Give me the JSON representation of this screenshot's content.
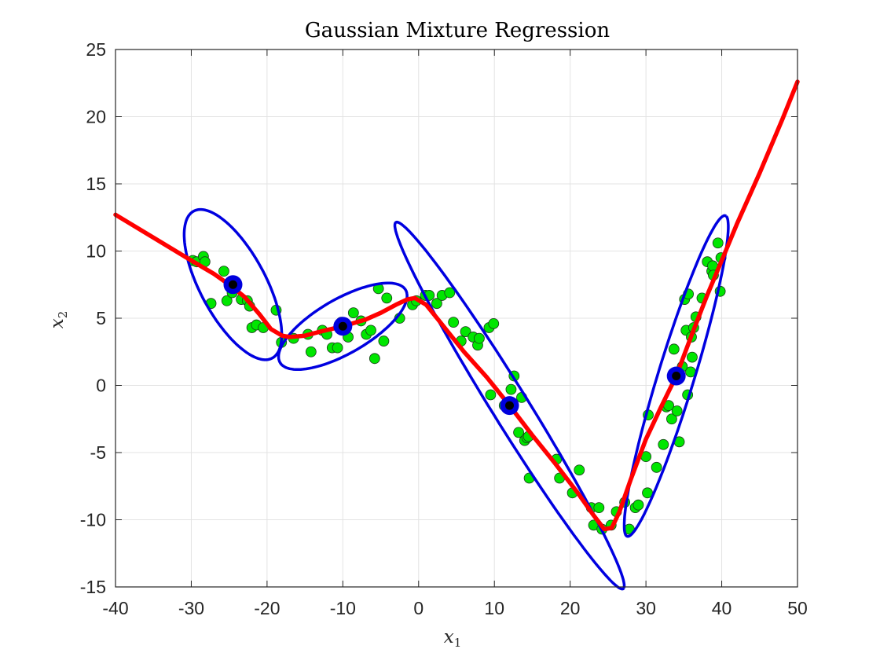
{
  "chart_data": {
    "type": "scatter",
    "title": "Gaussian Mixture Regression",
    "xlabel": "x",
    "xlabel_sub": "1",
    "ylabel": "x",
    "ylabel_sub": "2",
    "xlim": [
      -40,
      50
    ],
    "ylim": [
      -15,
      25
    ],
    "xticks": [
      -40,
      -30,
      -20,
      -10,
      0,
      10,
      20,
      30,
      40,
      50
    ],
    "yticks": [
      -15,
      -10,
      -5,
      0,
      5,
      10,
      15,
      20,
      25
    ],
    "grid": true,
    "colors": {
      "points": "#00e600",
      "point_edge": "#1a3a1a",
      "ellipse": "#0000e0",
      "center_outer": "#0000dd",
      "center_inner": "#000000",
      "regression": "#ff0000",
      "grid": "#e3e3e3",
      "axis": "#262626"
    },
    "points": [
      [
        -29.8,
        9.3
      ],
      [
        -29.3,
        9.2
      ],
      [
        -28.4,
        9.6
      ],
      [
        -28.2,
        9.2
      ],
      [
        -27.4,
        6.1
      ],
      [
        -25.7,
        8.5
      ],
      [
        -25.3,
        6.3
      ],
      [
        -24.6,
        6.9
      ],
      [
        -23.4,
        6.4
      ],
      [
        -22.6,
        6.3
      ],
      [
        -22.3,
        5.9
      ],
      [
        -22.0,
        4.3
      ],
      [
        -21.4,
        4.5
      ],
      [
        -20.5,
        4.3
      ],
      [
        -18.8,
        5.6
      ],
      [
        -18.1,
        3.2
      ],
      [
        -16.5,
        3.5
      ],
      [
        -14.6,
        3.8
      ],
      [
        -14.2,
        2.5
      ],
      [
        -12.7,
        4.1
      ],
      [
        -12.1,
        3.8
      ],
      [
        -11.4,
        2.8
      ],
      [
        -10.7,
        2.8
      ],
      [
        -10.2,
        4.7
      ],
      [
        -9.3,
        3.6
      ],
      [
        -8.6,
        5.4
      ],
      [
        -7.6,
        4.8
      ],
      [
        -6.9,
        3.8
      ],
      [
        -6.3,
        4.1
      ],
      [
        -5.8,
        2.0
      ],
      [
        -5.3,
        7.2
      ],
      [
        -4.6,
        3.3
      ],
      [
        -4.2,
        6.5
      ],
      [
        -2.5,
        5.0
      ],
      [
        -0.8,
        6.0
      ],
      [
        -0.3,
        6.3
      ],
      [
        0.9,
        6.7
      ],
      [
        1.4,
        6.7
      ],
      [
        2.4,
        6.1
      ],
      [
        3.1,
        6.7
      ],
      [
        4.1,
        6.9
      ],
      [
        4.6,
        4.7
      ],
      [
        5.6,
        3.3
      ],
      [
        6.2,
        4.0
      ],
      [
        7.2,
        3.6
      ],
      [
        7.8,
        3.0
      ],
      [
        8.0,
        3.5
      ],
      [
        9.3,
        4.3
      ],
      [
        9.5,
        -0.7
      ],
      [
        9.9,
        4.6
      ],
      [
        11.3,
        -1.5
      ],
      [
        11.6,
        -1.6
      ],
      [
        12.2,
        -0.3
      ],
      [
        12.4,
        -1.3
      ],
      [
        12.6,
        0.7
      ],
      [
        13.2,
        -3.5
      ],
      [
        13.6,
        -0.9
      ],
      [
        14.0,
        -4.1
      ],
      [
        14.3,
        -3.9
      ],
      [
        14.5,
        -3.8
      ],
      [
        14.6,
        -6.9
      ],
      [
        18.2,
        -5.5
      ],
      [
        18.6,
        -6.9
      ],
      [
        20.3,
        -8.0
      ],
      [
        21.2,
        -6.3
      ],
      [
        22.8,
        -9.1
      ],
      [
        23.1,
        -10.4
      ],
      [
        23.8,
        -9.1
      ],
      [
        24.2,
        -10.7
      ],
      [
        25.4,
        -10.4
      ],
      [
        26.1,
        -9.4
      ],
      [
        27.2,
        -8.7
      ],
      [
        27.8,
        -10.7
      ],
      [
        28.6,
        -9.1
      ],
      [
        29.0,
        -8.9
      ],
      [
        30.0,
        -5.3
      ],
      [
        30.2,
        -8.0
      ],
      [
        30.3,
        -2.2
      ],
      [
        31.4,
        -6.1
      ],
      [
        32.3,
        -4.4
      ],
      [
        32.7,
        -1.6
      ],
      [
        33.0,
        -1.5
      ],
      [
        33.4,
        -2.5
      ],
      [
        33.7,
        2.7
      ],
      [
        34.0,
        0.6
      ],
      [
        34.1,
        -1.9
      ],
      [
        34.4,
        -4.2
      ],
      [
        34.8,
        1.4
      ],
      [
        35.1,
        6.4
      ],
      [
        35.3,
        4.1
      ],
      [
        35.6,
        6.8
      ],
      [
        35.5,
        -0.7
      ],
      [
        35.9,
        1.0
      ],
      [
        36.0,
        3.6
      ],
      [
        36.1,
        2.1
      ],
      [
        36.3,
        4.3
      ],
      [
        36.6,
        5.1
      ],
      [
        37.4,
        6.5
      ],
      [
        38.1,
        9.2
      ],
      [
        38.7,
        8.5
      ],
      [
        38.8,
        8.9
      ],
      [
        38.9,
        8.2
      ],
      [
        39.5,
        10.6
      ],
      [
        39.8,
        7.0
      ],
      [
        39.9,
        9.5
      ]
    ],
    "components": [
      {
        "mean": [
          -24.5,
          7.5
        ],
        "major": 7.8,
        "minor": 3.45,
        "angle_deg": -39
      },
      {
        "mean": [
          -10.0,
          4.4
        ],
        "major": 8.8,
        "minor": 2.2,
        "angle_deg": 16
      },
      {
        "mean": [
          12.0,
          -1.5
        ],
        "major": 20.3,
        "minor": 1.9,
        "angle_deg": -42
      },
      {
        "mean": [
          34.0,
          0.7
        ],
        "major": 13.6,
        "minor": 2.2,
        "angle_deg": 61
      }
    ],
    "regression": [
      [
        -40,
        12.7
      ],
      [
        -35,
        11.0
      ],
      [
        -30,
        9.3
      ],
      [
        -27,
        8.3
      ],
      [
        -25,
        7.5
      ],
      [
        -23,
        6.6
      ],
      [
        -21,
        5.3
      ],
      [
        -19.5,
        4.2
      ],
      [
        -18,
        3.7
      ],
      [
        -17,
        3.6
      ],
      [
        -15,
        3.7
      ],
      [
        -13,
        4.0
      ],
      [
        -10,
        4.4
      ],
      [
        -7,
        4.9
      ],
      [
        -5,
        5.4
      ],
      [
        -3,
        6.0
      ],
      [
        -1.5,
        6.4
      ],
      [
        -0.5,
        6.5
      ],
      [
        1,
        6.0
      ],
      [
        3,
        4.6
      ],
      [
        6,
        2.5
      ],
      [
        9,
        0.6
      ],
      [
        12,
        -1.5
      ],
      [
        15,
        -3.7
      ],
      [
        18,
        -5.8
      ],
      [
        21,
        -8.0
      ],
      [
        23,
        -9.6
      ],
      [
        24.5,
        -10.7
      ],
      [
        25.5,
        -10.6
      ],
      [
        26.5,
        -9.4
      ],
      [
        28,
        -7.0
      ],
      [
        30,
        -4.0
      ],
      [
        32,
        -1.6
      ],
      [
        34,
        0.7
      ],
      [
        36,
        3.7
      ],
      [
        38,
        6.6
      ],
      [
        40,
        9.3
      ],
      [
        42,
        12.0
      ],
      [
        45,
        15.8
      ],
      [
        48,
        19.8
      ],
      [
        50,
        22.6
      ]
    ]
  }
}
